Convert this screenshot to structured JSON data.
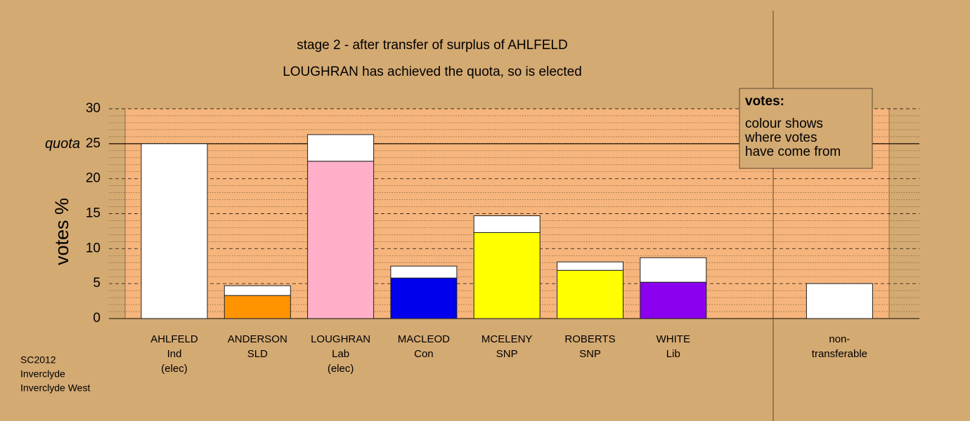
{
  "chart_data": {
    "type": "stacked_bar",
    "title": "stage 2 - after transfer of surplus of AHLFELD",
    "subtitle": "LOUGHRAN has achieved the quota, so is elected",
    "y_label": "votes %",
    "quota": 25,
    "quota_label": "quota",
    "categories": [
      [
        "AHLFELD",
        "Ind",
        "(elec)"
      ],
      [
        "ANDERSON",
        "SLD"
      ],
      [
        "LOUGHRAN",
        "Lab",
        "(elec)"
      ],
      [
        "MACLEOD",
        "Con"
      ],
      [
        "MCELENY",
        "SNP"
      ],
      [
        "ROBERTS",
        "SNP"
      ],
      [
        "WHITE",
        "Lib"
      ],
      [
        "non-",
        "transferable"
      ]
    ],
    "series": [
      {
        "colors": [
          "#ffffff",
          "#ff9300",
          "#ffb0c8",
          "#0000ee",
          "#ffff00",
          "#ffff00",
          "#8b00ee",
          "#ffffff"
        ],
        "values": [
          25,
          3.3,
          22.5,
          5.8,
          12.3,
          6.9,
          5.2,
          5.0
        ]
      },
      {
        "color": "#ffffff",
        "values": [
          null,
          1.4,
          3.8,
          1.7,
          2.4,
          1.2,
          3.5,
          null
        ]
      }
    ],
    "ylim": [
      0,
      30
    ],
    "yticks": [
      0,
      5,
      10,
      15,
      20,
      25,
      30
    ],
    "minor_yticks": [
      1,
      2,
      3,
      4,
      6,
      7,
      8,
      9,
      11,
      12,
      13,
      14,
      16,
      17,
      18,
      19,
      21,
      22,
      23,
      24,
      26,
      27,
      28,
      29
    ],
    "legend": {
      "title": "votes:",
      "lines": [
        "colour shows",
        "where votes",
        "have come from"
      ]
    },
    "footnote": [
      "SC2012",
      "Inverclyde",
      "Inverclyde West"
    ]
  }
}
